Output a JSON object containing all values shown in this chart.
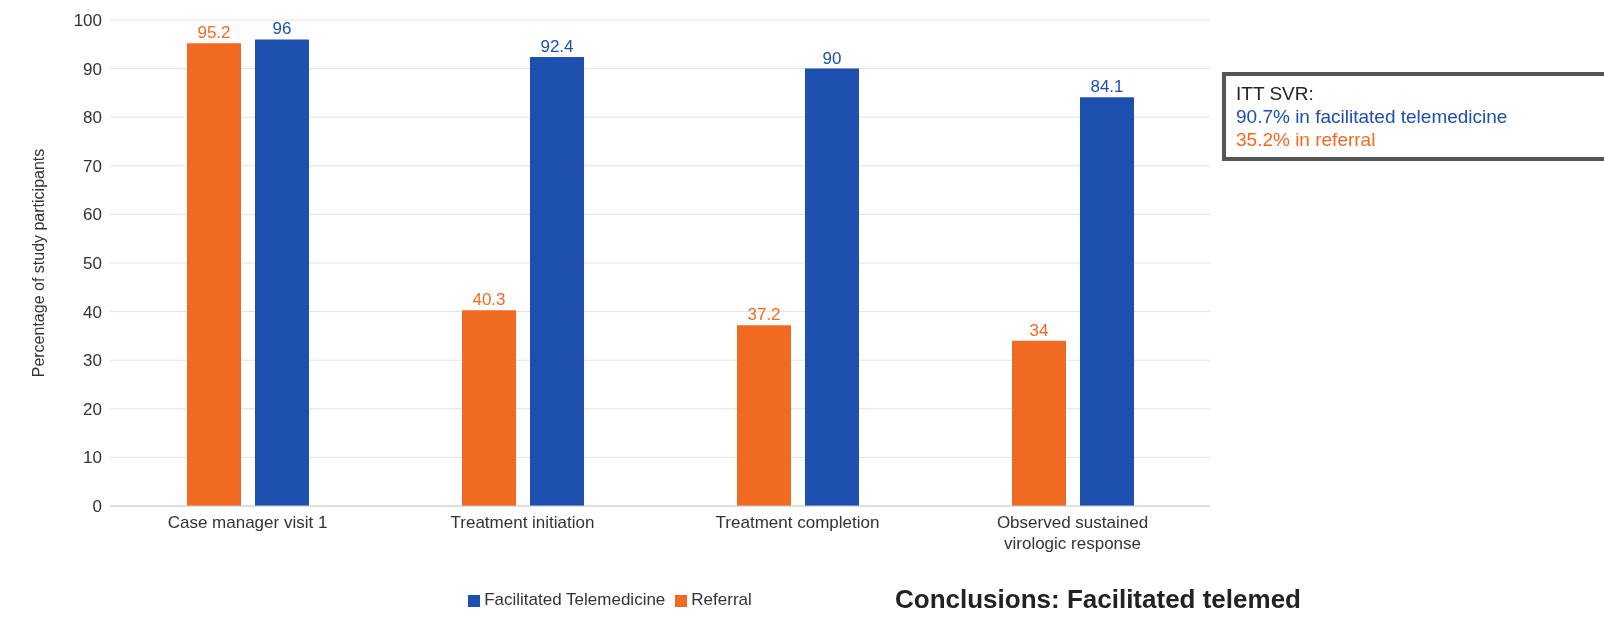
{
  "chart_data": {
    "type": "bar",
    "ylabel": "Percentage of study participants",
    "categories": [
      "Case manager visit 1",
      "Treatment initiation",
      "Treatment completion",
      "Observed sustained virologic response"
    ],
    "series": [
      {
        "name": "Referral",
        "color": "#f06a21",
        "values": [
          95.2,
          40.3,
          37.2,
          34
        ]
      },
      {
        "name": "Facilitated Telemedicine",
        "color": "#1d4fae",
        "values": [
          96,
          92.4,
          90,
          84.1
        ]
      }
    ],
    "ylim": [
      0,
      100
    ],
    "yticks": [
      0,
      10,
      20,
      30,
      40,
      50,
      60,
      70,
      80,
      90,
      100
    ],
    "grid": "y",
    "legend": "bottom",
    "data_labels": true,
    "annotations": [
      "ITT SVR:",
      "90.7% in facilitated telemedicine",
      "35.2% in referral",
      "Conclusions: Facilitated telemed"
    ]
  }
}
